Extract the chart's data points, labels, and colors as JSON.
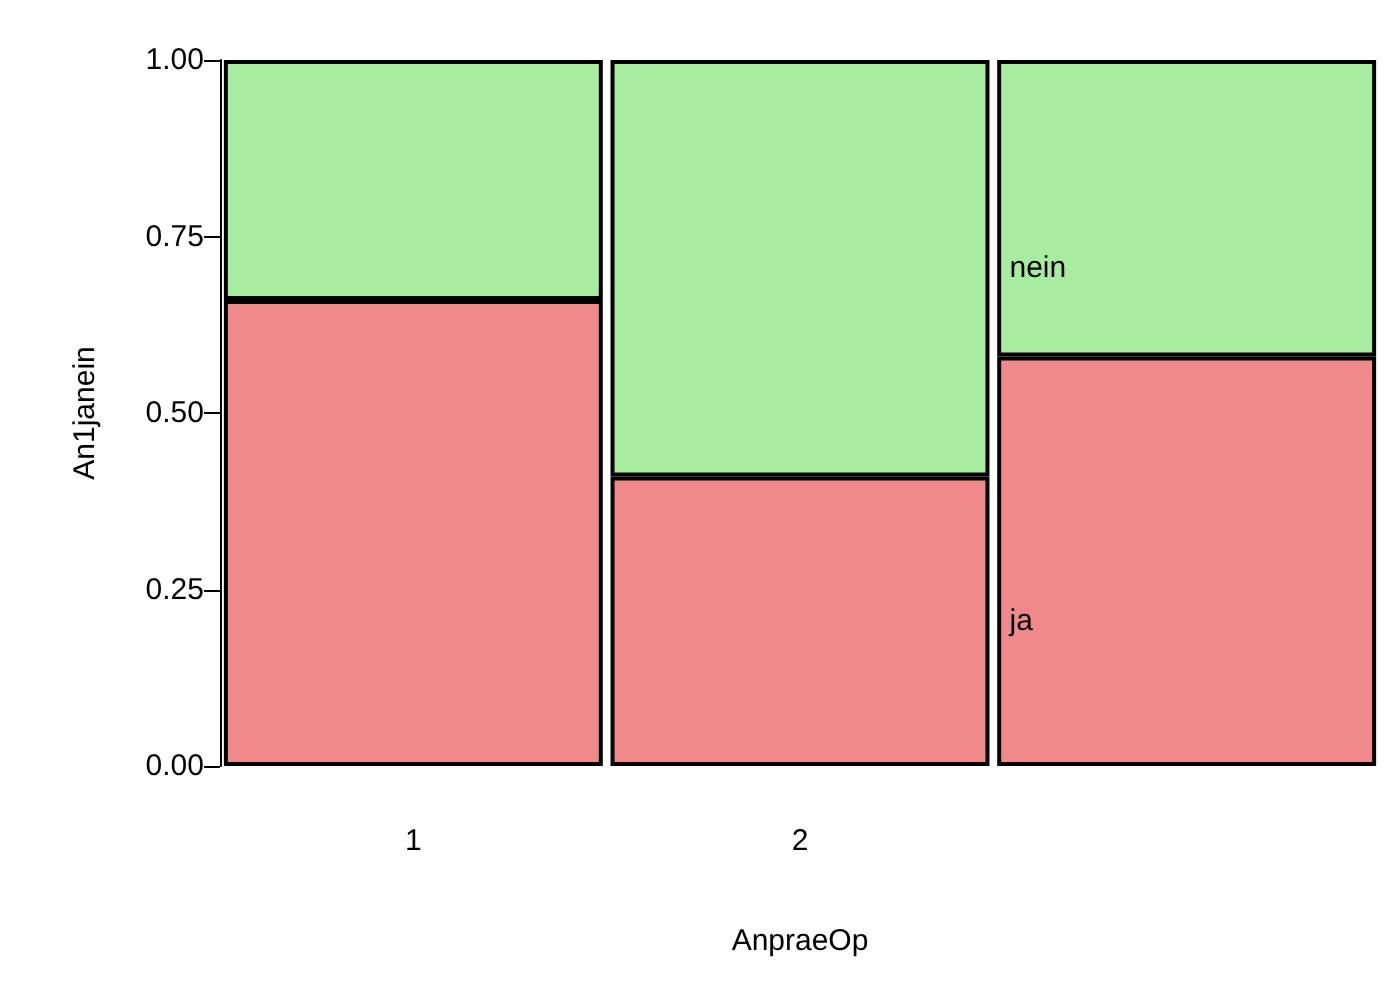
{
  "chart_data": {
    "type": "bar",
    "stacked": true,
    "xlabel": "AnpraeOp",
    "ylabel": "An1janein",
    "categories": [
      "1",
      "2",
      null
    ],
    "series": [
      {
        "name": "ja",
        "color": "#f08a8a",
        "values": [
          0.66,
          0.41,
          0.58
        ]
      },
      {
        "name": "nein",
        "color": "#a8eca0",
        "values": [
          0.34,
          0.59,
          0.42
        ]
      }
    ],
    "ylim": [
      0,
      1
    ],
    "yticks": [
      {
        "value": 0,
        "label": "0.00"
      },
      {
        "value": 0.25,
        "label": "0.25"
      },
      {
        "value": 0.5,
        "label": "0.50"
      },
      {
        "value": 0.75,
        "label": "0.75"
      },
      {
        "value": 1,
        "label": "1.00"
      }
    ],
    "grid": false,
    "legend": false
  }
}
